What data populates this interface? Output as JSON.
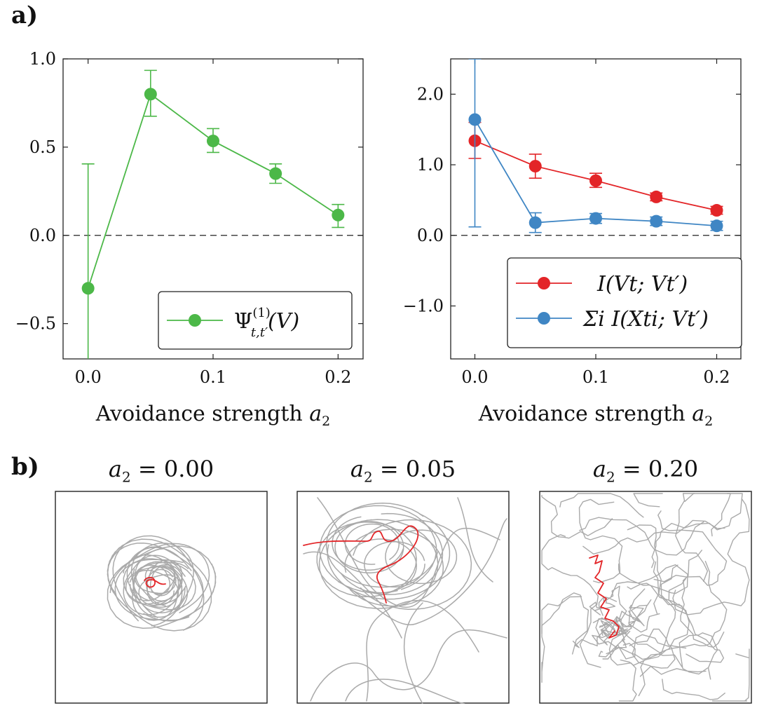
{
  "panel_labels": {
    "a": "a)",
    "b": "b)"
  },
  "colors": {
    "green": "#4cb848",
    "red": "#e32528",
    "blue": "#3f86c4",
    "trajectory": "#aaaaaa",
    "highlight": "#e32528"
  },
  "chart_data": [
    {
      "type": "line",
      "xlabel": "Avoidance strength",
      "xlabel_symbol": "a",
      "xlabel_sub": "2",
      "xlim": [
        -0.02,
        0.22
      ],
      "ylim": [
        -0.7,
        1.0
      ],
      "xticks": [
        0.0,
        0.1,
        0.2
      ],
      "xtick_labels": [
        "0.0",
        "0.1",
        "0.2"
      ],
      "yticks": [
        -0.5,
        0.0,
        0.5,
        1.0
      ],
      "ytick_labels": [
        "−0.5",
        "0.0",
        "0.5",
        "1.0"
      ],
      "zero_line": "dashed",
      "legend_position": "bottom-right",
      "series": [
        {
          "name": "Ψ(1) t,t′ (V)",
          "legend_main": "Ψ",
          "legend_sup": "(1)",
          "legend_sub": "t,t′",
          "legend_tail": "(V)",
          "color": "#4cb848",
          "x": [
            0.0,
            0.05,
            0.1,
            0.15,
            0.2
          ],
          "y": [
            -0.3,
            0.8,
            0.535,
            0.35,
            0.115
          ],
          "err_low": [
            -0.75,
            0.675,
            0.47,
            0.295,
            0.045
          ],
          "err_high": [
            0.405,
            0.935,
            0.605,
            0.405,
            0.175
          ]
        }
      ]
    },
    {
      "type": "line",
      "xlabel": "Avoidance strength",
      "xlabel_symbol": "a",
      "xlabel_sub": "2",
      "xlim": [
        -0.02,
        0.22
      ],
      "ylim": [
        -1.75,
        2.5
      ],
      "xticks": [
        0.0,
        0.1,
        0.2
      ],
      "xtick_labels": [
        "0.0",
        "0.1",
        "0.2"
      ],
      "yticks": [
        -1.0,
        0.0,
        1.0,
        2.0
      ],
      "ytick_labels": [
        "−1.0",
        "0.0",
        "1.0",
        "2.0"
      ],
      "zero_line": "dashed",
      "legend_position": "bottom-right",
      "series": [
        {
          "name": "I(V_t; V_t′)",
          "legend_text": "I(Vt; Vt′)",
          "color": "#e32528",
          "x": [
            0.0,
            0.05,
            0.1,
            0.15,
            0.2
          ],
          "y": [
            1.34,
            0.98,
            0.775,
            0.545,
            0.355
          ],
          "err_low": [
            1.09,
            0.81,
            0.68,
            0.49,
            0.3
          ],
          "err_high": [
            1.6,
            1.15,
            0.88,
            0.6,
            0.41
          ]
        },
        {
          "name": "Σ_i I(X_t^i; V_t′)",
          "legend_text": "Σi I(Xti; Vt′)",
          "color": "#3f86c4",
          "x": [
            0.0,
            0.05,
            0.1,
            0.15,
            0.2
          ],
          "y": [
            1.64,
            0.18,
            0.24,
            0.2,
            0.135
          ],
          "err_low": [
            0.12,
            0.04,
            0.17,
            0.14,
            0.07
          ],
          "err_high": [
            2.5,
            0.32,
            0.31,
            0.26,
            0.2
          ]
        }
      ]
    }
  ],
  "trajectory_panels": [
    {
      "title_symbol": "a",
      "title_sub": "2",
      "title_value": "= 0.00"
    },
    {
      "title_symbol": "a",
      "title_sub": "2",
      "title_value": "= 0.05"
    },
    {
      "title_symbol": "a",
      "title_sub": "2",
      "title_value": "= 0.20"
    }
  ]
}
